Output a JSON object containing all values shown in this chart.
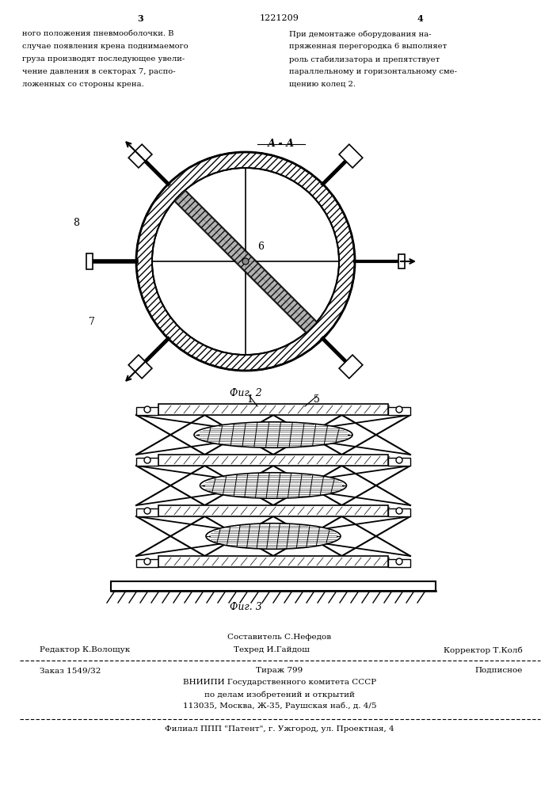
{
  "page_width": 7.07,
  "page_height": 10.0,
  "bg_color": "#ffffff",
  "header_left_num": "3",
  "header_center_num": "1221209",
  "header_right_num": "4",
  "text_left": [
    "ного положения пневмооболочки. В",
    "случае появления крена поднимаемого",
    "груза производят последующее увели-",
    "чение давления в секторах 7, распо-",
    "ложенных со стороны крена."
  ],
  "text_right": [
    "При демонтаже оборудования на-",
    "пряженная перегородка 6 выполняет",
    "роль стабилизатора и препятствует",
    "параллельному и горизонтальному сме-",
    "щению колец 2."
  ],
  "fig2_label": "А - А",
  "fig2_caption": "Фиг. 2",
  "fig3_caption": "Фиг. 3",
  "footer_line1_center": "Составитель С.Нефедов",
  "footer_line1_left": "Редактор К.Волощук",
  "footer_line1_center2": "Техред И.Гайдош",
  "footer_line1_right": "Корректор Т.Колб",
  "footer_line2_left": "Заказ 1549/32",
  "footer_line2_center": "Тираж 799",
  "footer_line2_right": "Подписное",
  "footer_line3": "ВНИИПИ Государственного комитета СССР",
  "footer_line4": "по делам изобретений и открытий",
  "footer_line5": "113035, Москва, Ж-35, Раушская наб., д. 4/5",
  "footer_line6": "Филиал ППП \"Патент\", г. Ужгород, ул. Проектная, 4"
}
